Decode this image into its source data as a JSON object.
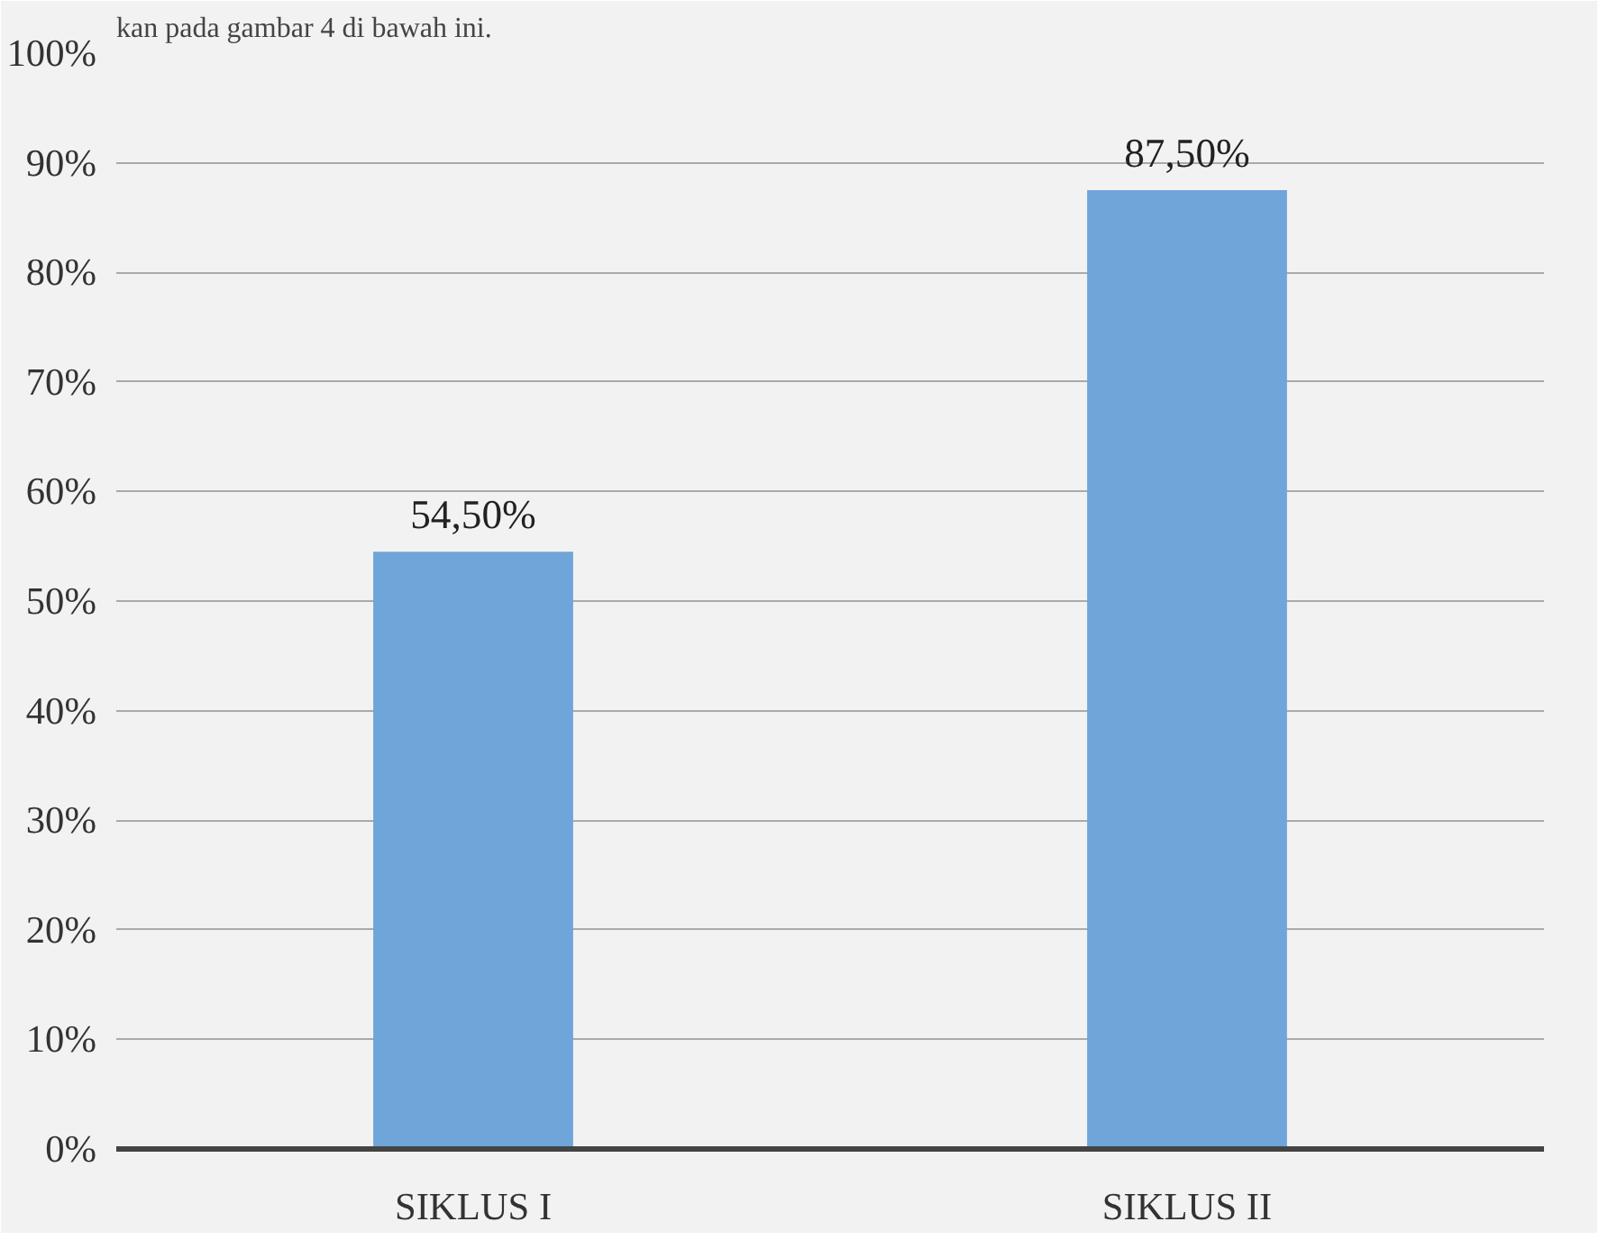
{
  "chart_data": {
    "type": "bar",
    "categories": [
      "SIKLUS I",
      "SIKLUS II"
    ],
    "values": [
      54.5,
      87.5
    ],
    "color": "#6fa5d9",
    "value_labels": [
      "54,50%",
      "87,50%"
    ],
    "ylim": [
      0,
      100
    ],
    "yticks": [
      {
        "value": 0,
        "label": "0%"
      },
      {
        "value": 10,
        "label": "10%"
      },
      {
        "value": 20,
        "label": "20%"
      },
      {
        "value": 30,
        "label": "30%"
      },
      {
        "value": 40,
        "label": "40%"
      },
      {
        "value": 50,
        "label": "50%"
      },
      {
        "value": 60,
        "label": "60%"
      },
      {
        "value": 70,
        "label": "70%"
      },
      {
        "value": 80,
        "label": "80%"
      },
      {
        "value": 90,
        "label": "90%"
      },
      {
        "value": 100,
        "label": "100%"
      }
    ],
    "grid": "y",
    "annotations": [
      "kan pada gambar 4 di bawah ini."
    ]
  }
}
